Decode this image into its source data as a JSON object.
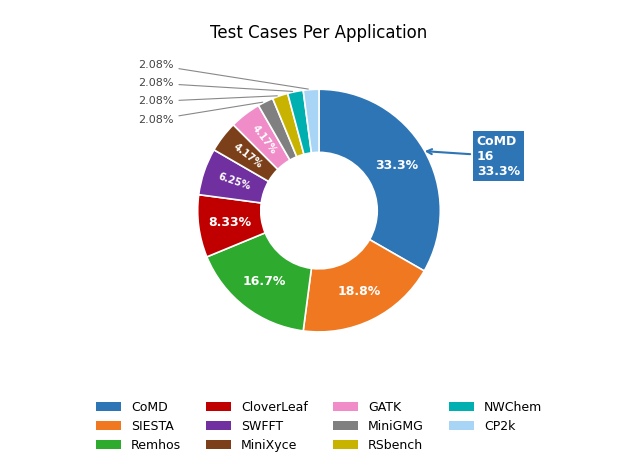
{
  "chart_data": {
    "type": "pie",
    "title": "Test Cases Per Application",
    "categories": [
      "CoMD",
      "SIESTA",
      "Remhos",
      "CloverLeaf",
      "SWFFT",
      "MiniXyce",
      "GATK",
      "MiniGMG",
      "RSbench",
      "NWChem",
      "CP2k"
    ],
    "values": [
      33.3,
      18.8,
      16.7,
      8.33,
      6.25,
      4.17,
      4.17,
      2.08,
      2.08,
      2.08,
      2.08
    ],
    "value_labels": [
      "33.3%",
      "18.8%",
      "16.7%",
      "8.33%",
      "6.25%",
      "4.17%",
      "4.17%",
      "2.08%",
      "2.08%",
      "2.08%",
      "2.08%"
    ],
    "colors": [
      "#2e75b6",
      "#f07820",
      "#2eaa2e",
      "#c00000",
      "#7030a0",
      "#7b4019",
      "#f08cc8",
      "#808080",
      "#c8b400",
      "#00b0b0",
      "#a8d4f5"
    ],
    "data_labels": true,
    "legend": "lower center",
    "annotations": [
      {
        "text": "CoMD\n16\n33.3%",
        "category": "CoMD"
      }
    ]
  }
}
